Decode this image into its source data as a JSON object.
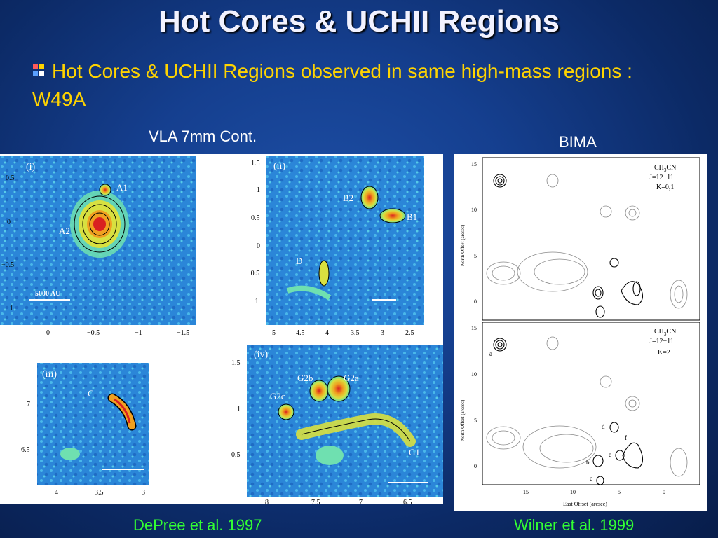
{
  "slide": {
    "title": "Hot Cores & UCHII Regions",
    "bullet": "Hot Cores & UCHII Regions observed in same high-mass regions : W49A",
    "bullet_icon": "windows-flag-bullet-icon"
  },
  "labels": {
    "vla": "VLA 7mm Cont.",
    "bima": "BIMA",
    "left_citation": "DePree et al. 1997",
    "right_citation": "Wilner et al. 1999"
  },
  "panels": {
    "i": {
      "tag": "(i)",
      "y_ticks": [
        "0.5",
        "0",
        "−0.5",
        "−1"
      ],
      "x_ticks": [
        "0",
        "−0.5",
        "−1",
        "−1.5"
      ],
      "sources": [
        "A1",
        "A2"
      ],
      "scale": "5000 AU"
    },
    "ii": {
      "tag": "(ii)",
      "y_ticks": [
        "1.5",
        "1",
        "0.5",
        "0",
        "−0.5",
        "−1"
      ],
      "x_ticks": [
        "5",
        "4.5",
        "4",
        "3.5",
        "3",
        "2.5"
      ],
      "sources": [
        "B2",
        "B1",
        "D"
      ]
    },
    "iii": {
      "tag": "(iii)",
      "y_ticks": [
        "7",
        "6.5"
      ],
      "x_ticks": [
        "4",
        "3.5",
        "3"
      ],
      "sources": [
        "C"
      ]
    },
    "iv": {
      "tag": "(iv)",
      "y_ticks": [
        "1.5",
        "1",
        "0.5"
      ],
      "x_ticks": [
        "8",
        "7.5",
        "7",
        "6.5"
      ],
      "sources": [
        "G2b",
        "G2a",
        "G2c",
        "G1"
      ]
    },
    "bima_top": {
      "line1": "CH",
      "sub": "3",
      "line1b": "CN",
      "line2": "J=12−11",
      "line3": "K=0,1",
      "ylabel": "North Offset (arcsec)",
      "y_ticks": [
        "15",
        "10",
        "5",
        "0"
      ]
    },
    "bima_bottom": {
      "line1": "CH",
      "sub": "3",
      "line1b": "CN",
      "line2": "J=12−11",
      "line3": "K=2",
      "ylabel": "North Offset (arcsec)",
      "xlabel": "East Offset (arcsec)",
      "y_ticks": [
        "15",
        "10",
        "5",
        "0"
      ],
      "x_ticks": [
        "15",
        "10",
        "5",
        "0"
      ],
      "sources": [
        "a",
        "b",
        "c",
        "d",
        "e",
        "f"
      ]
    }
  },
  "colors": {
    "title": "#f2f2ff",
    "bullet_text": "#ffd400",
    "citation": "#33ff33",
    "map_bg": "#2a7fd4"
  }
}
